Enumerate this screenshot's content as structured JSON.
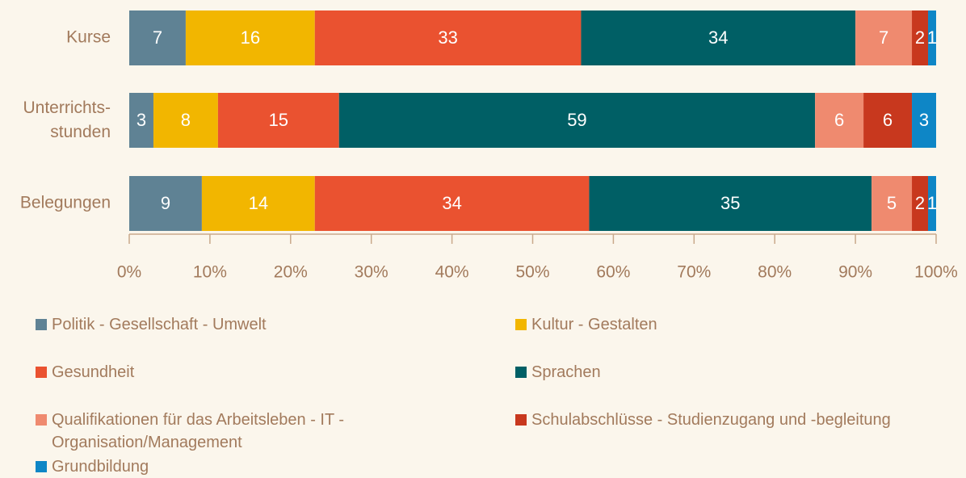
{
  "chart_data": {
    "type": "stacked_bar_horizontal",
    "categories": [
      "Kurse",
      "Unterrichts-\nstunden",
      "Belegungen"
    ],
    "series": [
      {
        "name": "Politik - Gesellschaft - Umwelt",
        "color": "#5f8294",
        "values": [
          7,
          3,
          9
        ]
      },
      {
        "name": "Kultur - Gestalten",
        "color": "#f2b600",
        "values": [
          16,
          8,
          14
        ]
      },
      {
        "name": "Gesundheit",
        "color": "#ea5230",
        "values": [
          33,
          15,
          34
        ]
      },
      {
        "name": "Sprachen",
        "color": "#005f65",
        "values": [
          34,
          59,
          35
        ]
      },
      {
        "name": "Qualifikationen für das Arbeitsleben - IT - Organisation/Management",
        "color": "#ef8a6f",
        "values": [
          7,
          6,
          5
        ]
      },
      {
        "name": "Schulabschlüsse - Studienzugang und -begleitung",
        "color": "#c8381e",
        "values": [
          2,
          6,
          2
        ]
      },
      {
        "name": "Grundbildung",
        "color": "#0e86c6",
        "values": [
          1,
          3,
          1
        ]
      }
    ],
    "xlim": [
      0,
      100
    ],
    "xticks": [
      {
        "value": 0,
        "label": "0%"
      },
      {
        "value": 10,
        "label": "10%"
      },
      {
        "value": 20,
        "label": "20%"
      },
      {
        "value": 30,
        "label": "30%"
      },
      {
        "value": 40,
        "label": "40%"
      },
      {
        "value": 50,
        "label": "50%"
      },
      {
        "value": 60,
        "label": "60%"
      },
      {
        "value": 70,
        "label": "70%"
      },
      {
        "value": 80,
        "label": "80%"
      },
      {
        "value": 90,
        "label": "90%"
      },
      {
        "value": 100,
        "label": "100%"
      }
    ],
    "legend": "bottom"
  }
}
